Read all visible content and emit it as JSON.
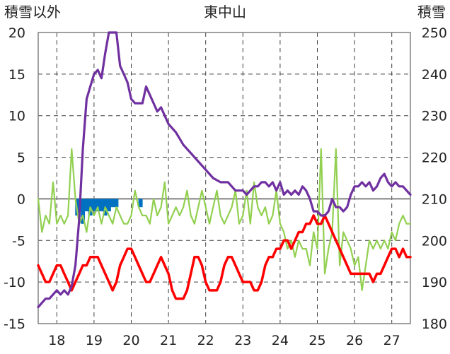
{
  "chart_data": {
    "type": "line",
    "title": "東中山",
    "ylabel_left": "積雪以外",
    "ylabel_right": "積雪",
    "x_ticks": [
      "18",
      "19",
      "20",
      "21",
      "22",
      "23",
      "24",
      "25",
      "26",
      "27"
    ],
    "xlim": [
      17.5,
      27.5
    ],
    "ylim_left": [
      -15,
      20
    ],
    "ylim_right": [
      180,
      250
    ],
    "y_ticks_left": [
      "-15",
      "-10",
      "-5",
      "0",
      "5",
      "10",
      "15",
      "20"
    ],
    "y_ticks_right": [
      "180",
      "190",
      "200",
      "210",
      "220",
      "230",
      "240",
      "250"
    ],
    "grid": true,
    "colors": {
      "snow_depth": "#7030a0",
      "temperature": "#ff0000",
      "wind": "#92d050",
      "precipitation": "#0070c0",
      "zero_line": "#808080",
      "grid": "#404040"
    },
    "series": [
      {
        "key": "snow_depth",
        "axis": "right",
        "x": [
          17.5,
          17.6,
          17.7,
          17.8,
          17.9,
          18.0,
          18.1,
          18.2,
          18.3,
          18.4,
          18.5,
          18.6,
          18.7,
          18.8,
          18.9,
          19.0,
          19.1,
          19.2,
          19.3,
          19.4,
          19.5,
          19.6,
          19.7,
          19.8,
          19.9,
          20.0,
          20.1,
          20.2,
          20.3,
          20.4,
          20.5,
          20.6,
          20.7,
          20.8,
          20.9,
          21.0,
          21.2,
          21.4,
          21.6,
          21.8,
          22.0,
          22.2,
          22.4,
          22.6,
          22.8,
          23.0,
          23.1,
          23.2,
          23.3,
          23.4,
          23.5,
          23.6,
          23.7,
          23.8,
          23.9,
          24.0,
          24.1,
          24.2,
          24.3,
          24.4,
          24.5,
          24.6,
          24.7,
          24.8,
          24.9,
          25.0,
          25.1,
          25.2,
          25.3,
          25.4,
          25.5,
          25.6,
          25.7,
          25.8,
          25.9,
          26.0,
          26.1,
          26.2,
          26.3,
          26.4,
          26.5,
          26.6,
          26.7,
          26.8,
          26.9,
          27.0,
          27.1,
          27.2,
          27.3,
          27.4,
          27.5
        ],
        "y": [
          184,
          185,
          186,
          186,
          187,
          188,
          187,
          188,
          187,
          189,
          194,
          205,
          222,
          234,
          237,
          240,
          241,
          239,
          245,
          250,
          250,
          250,
          242,
          240,
          238,
          234,
          233,
          233,
          233,
          237,
          235,
          233,
          231,
          232,
          230,
          228,
          226,
          223,
          221,
          219,
          217,
          215,
          214,
          214,
          212,
          212,
          211,
          212,
          213,
          213,
          214,
          214,
          213,
          214,
          212,
          214,
          211,
          212,
          211,
          212,
          211,
          213,
          212,
          210,
          207,
          207,
          206,
          206,
          207,
          210,
          208,
          208,
          207,
          208,
          211,
          213,
          213,
          214,
          213,
          214,
          212,
          213,
          215,
          216,
          214,
          213,
          214,
          213,
          213,
          212,
          211
        ]
      },
      {
        "key": "temperature",
        "axis": "left",
        "x": [
          17.5,
          17.6,
          17.7,
          17.8,
          17.9,
          18.0,
          18.1,
          18.2,
          18.3,
          18.4,
          18.5,
          18.6,
          18.7,
          18.8,
          18.9,
          19.0,
          19.1,
          19.2,
          19.3,
          19.4,
          19.5,
          19.6,
          19.7,
          19.8,
          19.9,
          20.0,
          20.1,
          20.2,
          20.3,
          20.4,
          20.5,
          20.6,
          20.7,
          20.8,
          20.9,
          21.0,
          21.1,
          21.2,
          21.3,
          21.4,
          21.5,
          21.6,
          21.7,
          21.8,
          21.9,
          22.0,
          22.1,
          22.2,
          22.3,
          22.4,
          22.5,
          22.6,
          22.7,
          22.8,
          22.9,
          23.0,
          23.1,
          23.2,
          23.3,
          23.4,
          23.5,
          23.6,
          23.7,
          23.8,
          23.9,
          24.0,
          24.1,
          24.2,
          24.3,
          24.4,
          24.5,
          24.6,
          24.7,
          24.8,
          24.9,
          25.0,
          25.1,
          25.2,
          25.3,
          25.4,
          25.5,
          25.6,
          25.7,
          25.8,
          25.9,
          26.0,
          26.1,
          26.2,
          26.3,
          26.4,
          26.5,
          26.6,
          26.7,
          26.8,
          26.9,
          27.0,
          27.1,
          27.2,
          27.3,
          27.4,
          27.5
        ],
        "y": [
          -8,
          -9,
          -10,
          -10,
          -9,
          -8,
          -8,
          -9,
          -10,
          -11,
          -10,
          -9,
          -8,
          -8,
          -7,
          -7,
          -7,
          -8,
          -9,
          -10,
          -11,
          -10,
          -8,
          -7,
          -6,
          -6,
          -7,
          -8,
          -9,
          -10,
          -10,
          -9,
          -8,
          -7,
          -8,
          -9,
          -11,
          -12,
          -12,
          -12,
          -11,
          -9,
          -7,
          -7,
          -8,
          -10,
          -11,
          -11,
          -11,
          -10,
          -8,
          -7,
          -7,
          -8,
          -9,
          -10,
          -10,
          -10,
          -11,
          -11,
          -10,
          -8,
          -7,
          -7,
          -6,
          -6,
          -5,
          -5,
          -6,
          -5,
          -4,
          -4,
          -3,
          -3,
          -2,
          -3,
          -3,
          -2,
          -3,
          -4,
          -5,
          -6,
          -7,
          -8,
          -9,
          -9,
          -9,
          -9,
          -9,
          -9,
          -10,
          -9,
          -9,
          -8,
          -7,
          -6,
          -6,
          -7,
          -6,
          -7,
          -7
        ]
      },
      {
        "key": "wind",
        "axis": "left",
        "x": [
          17.5,
          17.6,
          17.7,
          17.8,
          17.9,
          18.0,
          18.1,
          18.2,
          18.3,
          18.4,
          18.5,
          18.6,
          18.7,
          18.8,
          18.9,
          19.0,
          19.1,
          19.2,
          19.3,
          19.4,
          19.5,
          19.6,
          19.7,
          19.8,
          19.9,
          20.0,
          20.1,
          20.2,
          20.3,
          20.4,
          20.5,
          20.6,
          20.7,
          20.8,
          20.9,
          21.0,
          21.1,
          21.2,
          21.3,
          21.4,
          21.5,
          21.6,
          21.7,
          21.8,
          21.9,
          22.0,
          22.1,
          22.2,
          22.3,
          22.4,
          22.5,
          22.6,
          22.7,
          22.8,
          22.9,
          23.0,
          23.1,
          23.2,
          23.3,
          23.4,
          23.5,
          23.6,
          23.7,
          23.8,
          23.9,
          24.0,
          24.1,
          24.2,
          24.3,
          24.4,
          24.5,
          24.6,
          24.7,
          24.8,
          24.9,
          25.0,
          25.1,
          25.2,
          25.3,
          25.4,
          25.5,
          25.6,
          25.7,
          25.8,
          25.9,
          26.0,
          26.1,
          26.2,
          26.3,
          26.4,
          26.5,
          26.6,
          26.7,
          26.8,
          26.9,
          27.0,
          27.1,
          27.2,
          27.3,
          27.4,
          27.5
        ],
        "y": [
          0,
          -4,
          -2,
          -3,
          2,
          -3,
          -2,
          -3,
          -2,
          6,
          0,
          -3,
          -2,
          -4,
          -1,
          -2,
          -1,
          -3,
          -1,
          -2,
          -3,
          -1,
          -2,
          -3,
          -3,
          -2,
          1,
          -1,
          -2,
          -2,
          -3,
          0,
          -2,
          -1,
          2,
          -3,
          -2,
          -1,
          -2,
          -1,
          1,
          -2,
          -3,
          -1,
          1,
          -1,
          -3,
          -1,
          1,
          -2,
          -3,
          -2,
          -1,
          1,
          -3,
          -2,
          1,
          -3,
          2,
          -1,
          -2,
          -1,
          -3,
          -2,
          1,
          -3,
          -4,
          -6,
          -5,
          -7,
          -5,
          -6,
          -6,
          -8,
          -4,
          -6,
          6,
          -9,
          -6,
          -4,
          6,
          -8,
          -4,
          -5,
          -6,
          -8,
          -7,
          -11,
          -8,
          -5,
          -6,
          -5,
          -6,
          -5,
          -6,
          -4,
          -5,
          -3,
          -2,
          -3,
          -3
        ]
      },
      {
        "key": "precipitation",
        "axis": "left",
        "x": [
          18.55,
          18.6,
          18.7,
          18.8,
          18.9,
          19.0,
          19.1,
          19.2,
          19.3,
          19.4,
          19.5,
          19.6,
          20.25
        ],
        "y": [
          -2,
          -1.5,
          -3,
          -1.5,
          -2,
          -1.5,
          -1.5,
          -1.5,
          -2,
          -1.5,
          -1,
          -1,
          -1
        ]
      }
    ]
  }
}
